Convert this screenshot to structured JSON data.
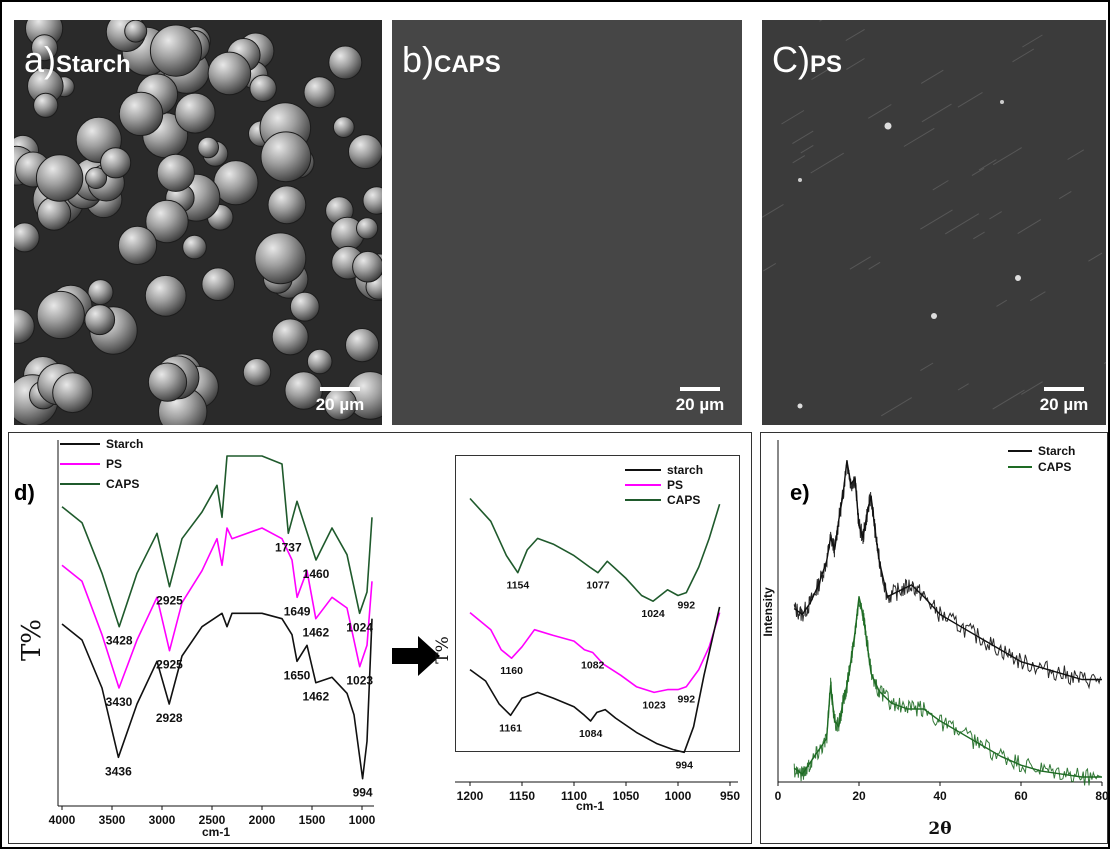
{
  "sem_panels": [
    {
      "letter": "a)",
      "name": "Starch",
      "scale": "20 µm"
    },
    {
      "letter": "b)",
      "name": "CAPS",
      "scale": "20 µm"
    },
    {
      "letter": "C)",
      "name": "PS",
      "scale": "20 µm"
    }
  ],
  "arrow_icon": "right-arrow",
  "colors": {
    "starch": "#111111",
    "ps": "#ff00ff",
    "caps": "#1f5a2c",
    "caps_xrd": "#1e6b24"
  },
  "chart_data": [
    {
      "type": "line",
      "panel_label": "d)",
      "ylabel": "T%",
      "xlabel": "cm-1",
      "xlim": [
        4000,
        900
      ],
      "x_ticks": [
        "4000",
        "3500",
        "3000",
        "2500",
        "2000",
        "1500",
        "1000"
      ],
      "legend": [
        "Starch",
        "PS",
        "CAPS"
      ],
      "series": [
        {
          "name": "CAPS",
          "peaks": [
            "3428",
            "2925",
            "1737",
            "1460",
            "1024"
          ],
          "x": [
            4000,
            3800,
            3600,
            3428,
            3250,
            3050,
            2925,
            2800,
            2600,
            2450,
            2400,
            2350,
            2300,
            2000,
            1800,
            1737,
            1650,
            1460,
            1300,
            1150,
            1024,
            950,
            900
          ],
          "y": [
            80,
            74,
            55,
            35,
            55,
            70,
            50,
            68,
            78,
            88,
            76,
            99,
            99,
            99,
            96,
            70,
            82,
            60,
            72,
            62,
            40,
            48,
            76
          ]
        },
        {
          "name": "PS",
          "peaks": [
            "3430",
            "2925",
            "1649",
            "1462",
            "1023"
          ],
          "x": [
            4000,
            3800,
            3600,
            3430,
            3250,
            3050,
            2925,
            2800,
            2600,
            2450,
            2400,
            2350,
            2300,
            2000,
            1800,
            1700,
            1649,
            1550,
            1462,
            1300,
            1150,
            1023,
            950,
            900
          ],
          "y": [
            58,
            52,
            32,
            12,
            30,
            46,
            26,
            44,
            56,
            68,
            58,
            72,
            68,
            72,
            68,
            60,
            46,
            56,
            38,
            46,
            42,
            20,
            28,
            52
          ]
        },
        {
          "name": "Starch",
          "peaks": [
            "3436",
            "2928",
            "1650",
            "1462",
            "994"
          ],
          "x": [
            4000,
            3800,
            3600,
            3436,
            3250,
            3050,
            2928,
            2800,
            2600,
            2400,
            2350,
            2300,
            2000,
            1800,
            1700,
            1650,
            1550,
            1462,
            1300,
            1150,
            1080,
            994,
            950,
            900
          ],
          "y": [
            36,
            30,
            12,
            -14,
            6,
            22,
            6,
            24,
            35,
            40,
            35,
            40,
            40,
            38,
            32,
            22,
            28,
            14,
            16,
            10,
            2,
            -22,
            -8,
            38
          ]
        }
      ]
    },
    {
      "type": "line",
      "ylabel": "T%",
      "xlabel": "cm-1",
      "xlim": [
        1200,
        950
      ],
      "x_ticks": [
        "1200",
        "1150",
        "1100",
        "1050",
        "1000",
        "950"
      ],
      "legend": [
        "starch",
        "PS",
        "CAPS"
      ],
      "series": [
        {
          "name": "CAPS",
          "peaks": [
            "1154",
            "1077",
            "1024",
            "992"
          ],
          "x": [
            1200,
            1180,
            1165,
            1154,
            1145,
            1135,
            1120,
            1100,
            1085,
            1077,
            1068,
            1050,
            1035,
            1024,
            1010,
            1000,
            992,
            980,
            970,
            960
          ],
          "y": [
            90,
            82,
            70,
            64,
            72,
            76,
            74,
            70,
            66,
            64,
            68,
            62,
            56,
            54,
            58,
            56,
            57,
            66,
            76,
            88
          ]
        },
        {
          "name": "PS",
          "peaks": [
            "1160",
            "1082",
            "1023",
            "992"
          ],
          "x": [
            1200,
            1180,
            1170,
            1160,
            1150,
            1138,
            1120,
            1100,
            1090,
            1082,
            1072,
            1055,
            1040,
            1023,
            1010,
            1000,
            992,
            980,
            970,
            960
          ],
          "y": [
            50,
            44,
            37,
            34,
            38,
            44,
            42,
            40,
            37,
            36,
            32,
            28,
            24,
            22,
            23,
            23,
            24,
            30,
            38,
            50
          ]
        },
        {
          "name": "starch",
          "peaks": [
            "1161",
            "1084",
            "994"
          ],
          "x": [
            1200,
            1185,
            1172,
            1161,
            1150,
            1135,
            1120,
            1100,
            1090,
            1084,
            1078,
            1070,
            1060,
            1040,
            1020,
            1005,
            994,
            985,
            975,
            960
          ],
          "y": [
            30,
            26,
            18,
            14,
            20,
            22,
            20,
            17,
            14,
            12,
            15,
            16,
            13,
            8,
            4,
            2,
            1,
            10,
            28,
            52
          ]
        }
      ]
    },
    {
      "type": "line",
      "panel_label": "e)",
      "xlabel": "2θ",
      "ylabel": "Intensity",
      "xlim": [
        0,
        80
      ],
      "x_ticks": [
        "0",
        "20",
        "40",
        "60",
        "80"
      ],
      "legend": [
        "Starch",
        "CAPS"
      ],
      "series": [
        {
          "name": "Starch",
          "x": [
            4,
            6,
            8,
            10,
            12,
            13,
            14,
            15,
            16,
            17,
            18,
            19,
            20,
            21,
            22,
            23,
            24,
            25,
            27,
            30,
            33,
            36,
            40,
            45,
            50,
            55,
            60,
            65,
            70,
            75,
            80
          ],
          "y": [
            58,
            56,
            60,
            66,
            74,
            82,
            78,
            88,
            96,
            108,
            100,
            102,
            86,
            82,
            90,
            96,
            84,
            74,
            62,
            64,
            66,
            62,
            56,
            52,
            48,
            44,
            40,
            38,
            36,
            34,
            34
          ]
        },
        {
          "name": "CAPS",
          "x": [
            4,
            6,
            8,
            10,
            12,
            13,
            14,
            15,
            16,
            17,
            18,
            19,
            20,
            21,
            22,
            23,
            25,
            28,
            32,
            36,
            40,
            45,
            50,
            55,
            60,
            65,
            70,
            75,
            80
          ],
          "y": [
            4,
            2,
            6,
            10,
            14,
            32,
            20,
            18,
            26,
            32,
            40,
            50,
            62,
            56,
            46,
            36,
            30,
            26,
            24,
            24,
            20,
            16,
            12,
            8,
            5,
            3,
            2,
            1,
            1
          ]
        }
      ]
    }
  ]
}
